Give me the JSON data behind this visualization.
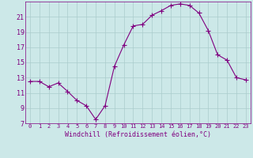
{
  "x": [
    0,
    1,
    2,
    3,
    4,
    5,
    6,
    7,
    8,
    9,
    10,
    11,
    12,
    13,
    14,
    15,
    16,
    17,
    18,
    19,
    20,
    21,
    22,
    23
  ],
  "y": [
    12.5,
    12.5,
    11.8,
    12.3,
    11.2,
    10.0,
    9.3,
    7.5,
    9.3,
    14.5,
    17.3,
    19.8,
    20.0,
    21.2,
    21.8,
    22.5,
    22.7,
    22.5,
    21.5,
    19.2,
    16.0,
    15.3,
    13.0,
    12.7
  ],
  "line_color": "#800080",
  "marker": "+",
  "marker_size": 4,
  "xlabel": "Windchill (Refroidissement éolien,°C)",
  "xlim": [
    -0.5,
    23.5
  ],
  "ylim": [
    7,
    23
  ],
  "yticks": [
    7,
    9,
    11,
    13,
    15,
    17,
    19,
    21
  ],
  "xticks": [
    0,
    1,
    2,
    3,
    4,
    5,
    6,
    7,
    8,
    9,
    10,
    11,
    12,
    13,
    14,
    15,
    16,
    17,
    18,
    19,
    20,
    21,
    22,
    23
  ],
  "bg_color": "#cce8e8",
  "grid_color": "#aacccc",
  "tick_label_color": "#800080",
  "axis_label_color": "#800080",
  "tick_fontsize": 5,
  "label_fontsize": 6
}
